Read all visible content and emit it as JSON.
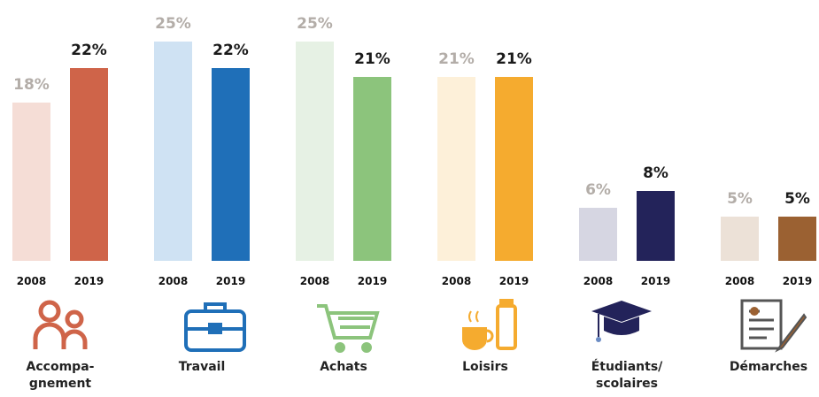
{
  "chart_data": {
    "type": "bar",
    "categories": [
      "Accompa-\ngnement",
      "Travail",
      "Achats",
      "Loisirs",
      "Étudiants/\nscolaires",
      "Démarches"
    ],
    "series": [
      {
        "name": "2008",
        "colors": [
          "#f5ddd6",
          "#cfe2f3",
          "#e6f1e4",
          "#fdf0d9",
          "#d6d6e2",
          "#ece1d7"
        ],
        "values": [
          18,
          25,
          25,
          21,
          6,
          5
        ],
        "value_labels": [
          "18%",
          "25%",
          "25%",
          "21%",
          "6%",
          "5%"
        ]
      },
      {
        "name": "2019",
        "colors": [
          "#cf6449",
          "#1f6fb8",
          "#8cc47c",
          "#f5ab2f",
          "#23235a",
          "#9b6132"
        ],
        "values": [
          22,
          22,
          21,
          21,
          8,
          5
        ],
        "value_labels": [
          "22%",
          "22%",
          "21%",
          "21%",
          "8%",
          "5%"
        ]
      }
    ],
    "ylim": [
      0,
      25
    ]
  }
}
